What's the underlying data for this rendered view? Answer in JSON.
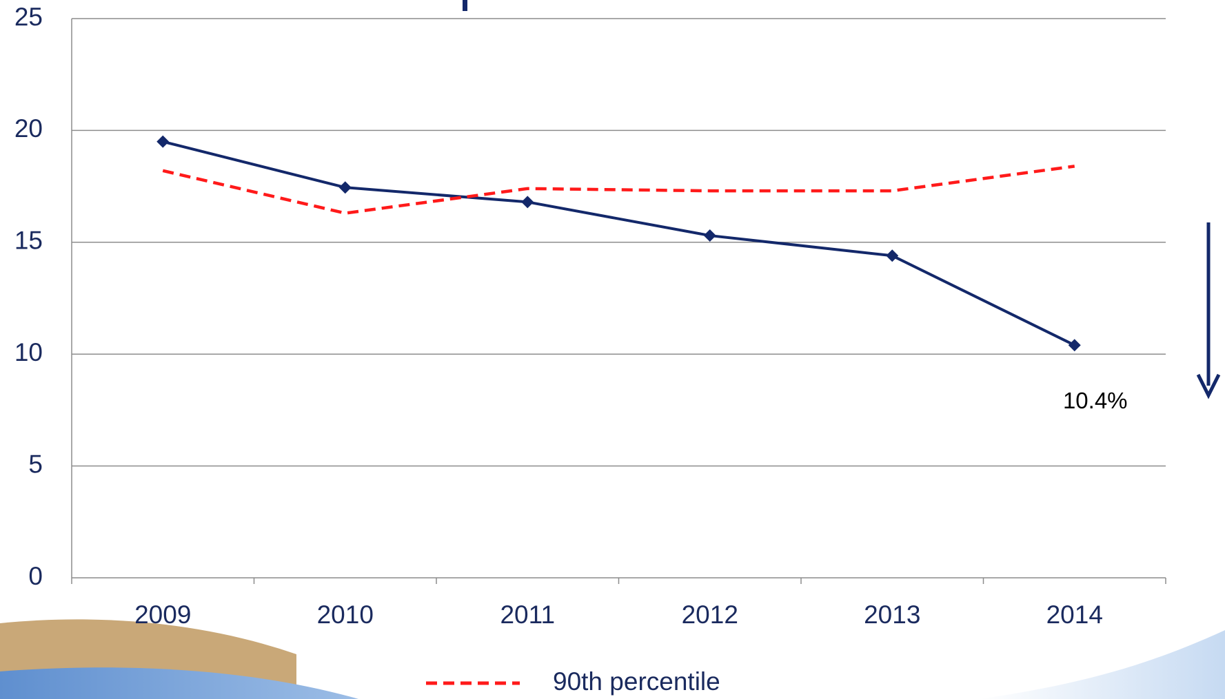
{
  "chart_data": {
    "type": "line",
    "categories": [
      "2009",
      "2010",
      "2011",
      "2012",
      "2013",
      "2014"
    ],
    "series": [
      {
        "color": "#13286a",
        "values": [
          19.5,
          17.45,
          16.8,
          15.3,
          14.4,
          10.4
        ],
        "value_labels": [
          null,
          null,
          null,
          null,
          null,
          "10.4%"
        ],
        "dash": false,
        "marker": "diamond"
      },
      {
        "name": "90th percentile",
        "color": "#ff1a1a",
        "values": [
          18.2,
          16.3,
          17.4,
          17.3,
          17.3,
          18.4
        ],
        "dash": true
      }
    ],
    "ylim": [
      0,
      25
    ],
    "yticks": [
      0,
      5,
      10,
      15,
      20,
      25
    ],
    "grid": true
  }
}
